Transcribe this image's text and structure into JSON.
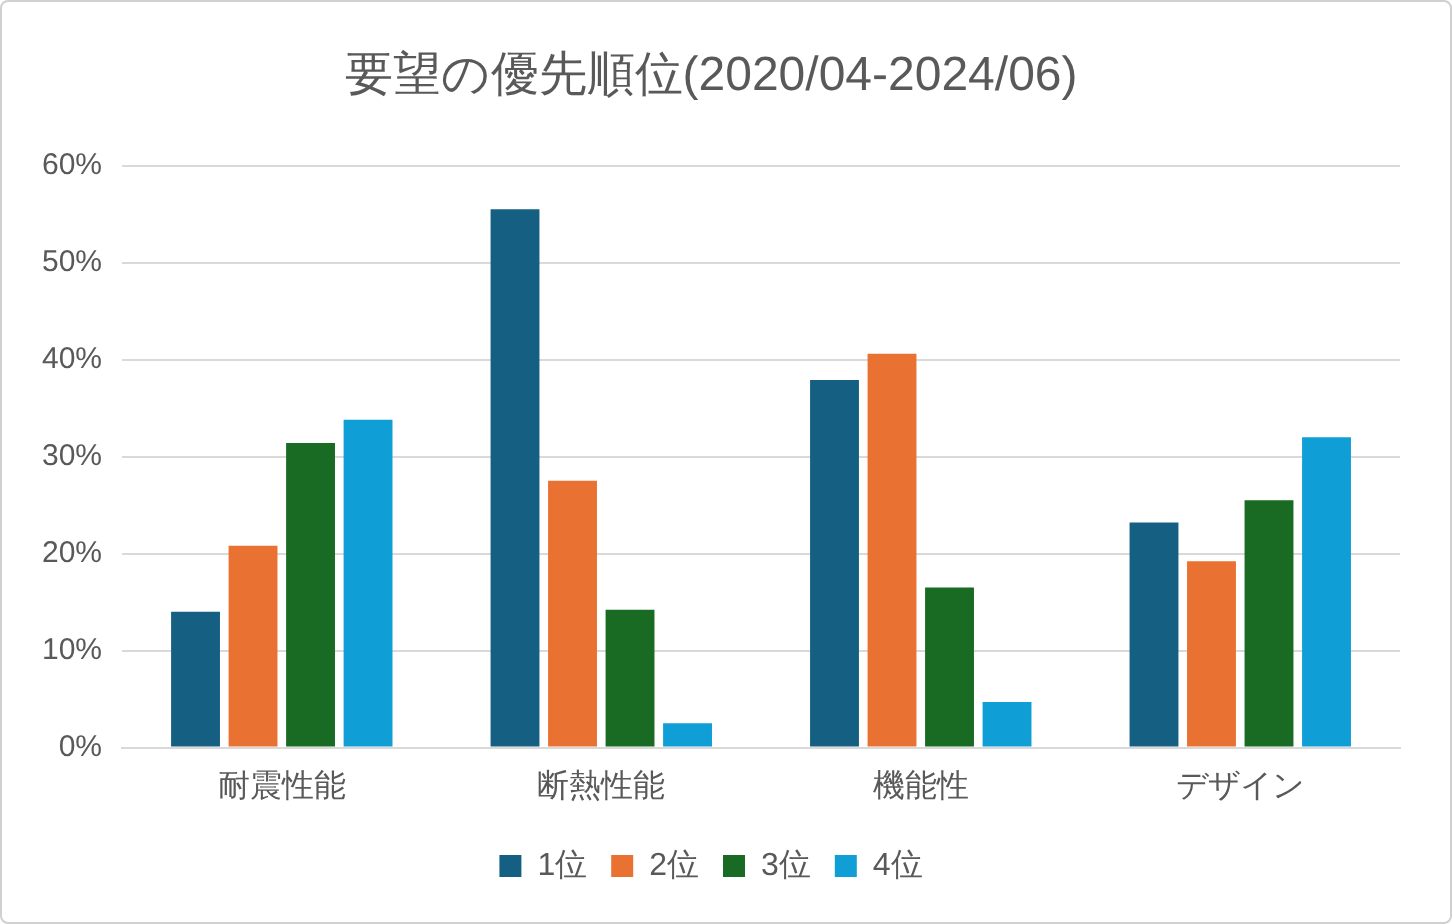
{
  "chart_data": {
    "type": "bar",
    "title": "要望の優先順位(2020/04-2024/06)",
    "categories": [
      "耐震性能",
      "断熱性能",
      "機能性",
      "デザイン"
    ],
    "series": [
      {
        "name": "1位",
        "color": "#156082",
        "values": [
          14.0,
          55.5,
          37.9,
          23.2
        ]
      },
      {
        "name": "2位",
        "color": "#e97132",
        "values": [
          20.8,
          27.5,
          40.6,
          19.2
        ]
      },
      {
        "name": "3位",
        "color": "#196b24",
        "values": [
          31.4,
          14.2,
          16.5,
          25.5
        ]
      },
      {
        "name": "4位",
        "color": "#0f9ed5",
        "values": [
          33.8,
          2.5,
          4.7,
          32.0
        ]
      }
    ],
    "ylim": [
      0,
      60
    ],
    "yticks": [
      {
        "value": 0,
        "label": "0%"
      },
      {
        "value": 10,
        "label": "10%"
      },
      {
        "value": 20,
        "label": "20%"
      },
      {
        "value": 30,
        "label": "30%"
      },
      {
        "value": 40,
        "label": "40%"
      },
      {
        "value": 50,
        "label": "50%"
      },
      {
        "value": 60,
        "label": "60%"
      }
    ],
    "grid": "y",
    "legend": "bottom"
  }
}
